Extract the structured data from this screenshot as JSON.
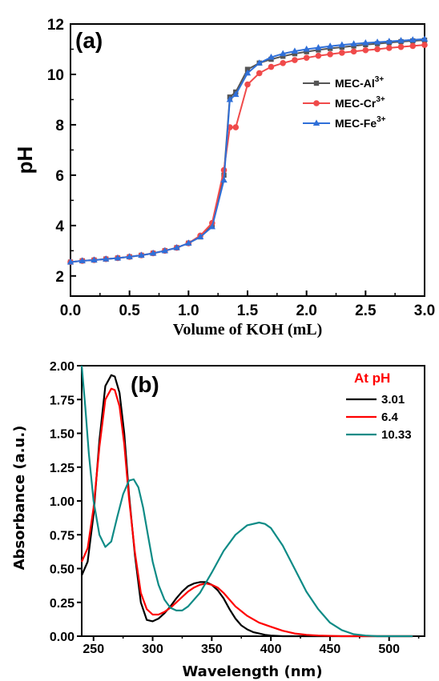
{
  "chart_data": [
    {
      "type": "line",
      "panel_label": "(a)",
      "xlabel": "Volume of KOH (mL)",
      "ylabel": "pH",
      "xlim": [
        0,
        3.0
      ],
      "ylim": [
        1.2,
        12
      ],
      "xticks": [
        "0.0",
        "0.5",
        "1.0",
        "1.5",
        "2.0",
        "2.5",
        "3.0"
      ],
      "yticks": [
        "2",
        "4",
        "6",
        "8",
        "10",
        "12"
      ],
      "legend_position": "center-right",
      "x": [
        0.0,
        0.1,
        0.2,
        0.3,
        0.4,
        0.5,
        0.6,
        0.7,
        0.8,
        0.9,
        1.0,
        1.1,
        1.2,
        1.3,
        1.35,
        1.4,
        1.5,
        1.6,
        1.7,
        1.8,
        1.9,
        2.0,
        2.1,
        2.2,
        2.3,
        2.4,
        2.5,
        2.6,
        2.7,
        2.8,
        2.9,
        3.0
      ],
      "series": [
        {
          "name": "MEC-Al",
          "superscript": "3+",
          "color": "#555555",
          "marker": "square",
          "values": [
            2.55,
            2.6,
            2.63,
            2.67,
            2.71,
            2.76,
            2.82,
            2.9,
            3.0,
            3.12,
            3.3,
            3.55,
            4.0,
            6.0,
            9.1,
            9.3,
            10.2,
            10.45,
            10.6,
            10.72,
            10.82,
            10.9,
            10.97,
            11.03,
            11.08,
            11.13,
            11.18,
            11.22,
            11.26,
            11.3,
            11.33,
            11.36
          ]
        },
        {
          "name": "MEC-Cr",
          "superscript": "3+",
          "color": "#f04a4a",
          "marker": "circle",
          "values": [
            2.55,
            2.6,
            2.63,
            2.67,
            2.71,
            2.76,
            2.82,
            2.9,
            3.0,
            3.12,
            3.3,
            3.6,
            4.1,
            6.2,
            7.9,
            7.9,
            9.6,
            10.05,
            10.3,
            10.45,
            10.57,
            10.66,
            10.74,
            10.8,
            10.86,
            10.91,
            10.96,
            11.0,
            11.05,
            11.09,
            11.13,
            11.17
          ]
        },
        {
          "name": "MEC-Fe",
          "superscript": "3+",
          "color": "#2f6fd8",
          "marker": "triangle",
          "values": [
            2.55,
            2.6,
            2.63,
            2.67,
            2.71,
            2.76,
            2.82,
            2.9,
            3.0,
            3.12,
            3.3,
            3.55,
            3.95,
            5.8,
            9.0,
            9.2,
            10.05,
            10.45,
            10.68,
            10.82,
            10.92,
            11.0,
            11.06,
            11.12,
            11.17,
            11.21,
            11.25,
            11.28,
            11.31,
            11.34,
            11.37,
            11.4
          ]
        }
      ]
    },
    {
      "type": "line",
      "panel_label": "(b)",
      "xlabel": "Wavelength (nm)",
      "ylabel": "Absorbance (a.u.)",
      "xlim": [
        240,
        530
      ],
      "ylim": [
        0,
        2.0
      ],
      "xticks": [
        "250",
        "300",
        "350",
        "400",
        "450",
        "500"
      ],
      "yticks": [
        "0.00",
        "0.25",
        "0.50",
        "0.75",
        "1.00",
        "1.25",
        "1.50",
        "1.75",
        "2.00"
      ],
      "legend_title": "At pH",
      "legend_position": "top-right",
      "series": [
        {
          "name": "3.01",
          "color": "#000000",
          "x": [
            240,
            245,
            250,
            255,
            260,
            265,
            268,
            272,
            276,
            280,
            285,
            290,
            295,
            300,
            305,
            310,
            315,
            320,
            325,
            330,
            335,
            340,
            345,
            350,
            355,
            360,
            365,
            370,
            375,
            380,
            385,
            390,
            395,
            400,
            410,
            420,
            440,
            460,
            480,
            500,
            520
          ],
          "values": [
            0.45,
            0.55,
            0.9,
            1.45,
            1.85,
            1.93,
            1.92,
            1.8,
            1.5,
            1.05,
            0.6,
            0.25,
            0.12,
            0.11,
            0.13,
            0.17,
            0.22,
            0.28,
            0.33,
            0.37,
            0.39,
            0.4,
            0.4,
            0.38,
            0.34,
            0.28,
            0.2,
            0.13,
            0.08,
            0.05,
            0.03,
            0.02,
            0.01,
            0.005,
            0.0,
            0.0,
            0.0,
            0.0,
            0.0,
            0.0,
            0.0
          ]
        },
        {
          "name": "6.4",
          "color": "#ff0000",
          "x": [
            240,
            245,
            250,
            255,
            260,
            265,
            268,
            272,
            276,
            280,
            285,
            290,
            295,
            300,
            305,
            310,
            315,
            320,
            325,
            330,
            335,
            340,
            345,
            350,
            355,
            360,
            365,
            370,
            380,
            390,
            400,
            410,
            420,
            430,
            440,
            460,
            480,
            500,
            520
          ],
          "values": [
            0.55,
            0.65,
            0.95,
            1.4,
            1.75,
            1.83,
            1.82,
            1.7,
            1.42,
            1.02,
            0.62,
            0.32,
            0.2,
            0.16,
            0.16,
            0.18,
            0.21,
            0.25,
            0.29,
            0.33,
            0.36,
            0.38,
            0.39,
            0.38,
            0.36,
            0.32,
            0.27,
            0.22,
            0.15,
            0.1,
            0.07,
            0.04,
            0.02,
            0.01,
            0.005,
            0.0,
            0.0,
            0.0,
            0.0
          ]
        },
        {
          "name": "10.33",
          "color": "#0e8b86",
          "x": [
            240,
            243,
            246,
            250,
            255,
            260,
            265,
            270,
            275,
            280,
            284,
            288,
            292,
            296,
            300,
            305,
            310,
            315,
            320,
            325,
            330,
            340,
            350,
            360,
            370,
            380,
            390,
            395,
            400,
            410,
            420,
            430,
            440,
            450,
            460,
            470,
            480,
            490,
            500,
            520
          ],
          "values": [
            2.0,
            1.7,
            1.35,
            1.0,
            0.75,
            0.66,
            0.7,
            0.88,
            1.05,
            1.15,
            1.16,
            1.1,
            0.95,
            0.75,
            0.55,
            0.38,
            0.27,
            0.21,
            0.19,
            0.19,
            0.22,
            0.32,
            0.47,
            0.63,
            0.75,
            0.82,
            0.84,
            0.83,
            0.8,
            0.67,
            0.5,
            0.33,
            0.2,
            0.1,
            0.045,
            0.015,
            0.005,
            0.0,
            0.0,
            0.0
          ]
        }
      ]
    }
  ]
}
